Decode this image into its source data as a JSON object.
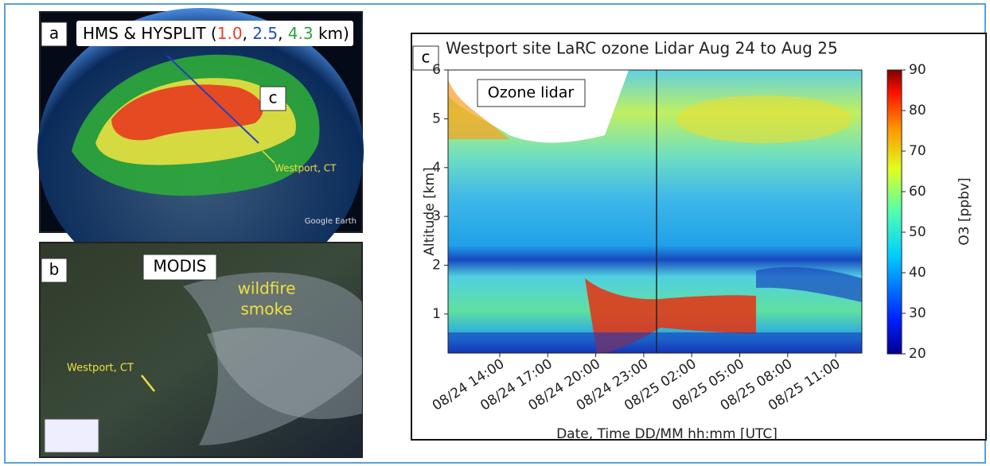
{
  "panels": {
    "a": {
      "label": "a",
      "title_parts": [
        "HMS & HYSPLIT (",
        "1.0",
        ", ",
        "2.5",
        ", ",
        "4.3",
        " km)"
      ],
      "marker": "c",
      "place": "Westport, CT",
      "credit": "Google Earth"
    },
    "b": {
      "label": "b",
      "title": "MODIS",
      "smoke": [
        "wildfire",
        "smoke"
      ],
      "place": "Westport, CT"
    }
  },
  "chart_data": {
    "type": "heatmap",
    "panel_label": "c",
    "title": "Westport site LaRC ozone Lidar Aug 24 to Aug 25",
    "annotation": "Ozone lidar",
    "xlabel": "Date, Time DD/MM hh:mm [UTC]",
    "ylabel": "Altitude [km]",
    "categories": [
      "08/24 14:00",
      "08/24 17:00",
      "08/24 20:00",
      "08/24 23:00",
      "08/25 02:00",
      "08/25 05:00",
      "08/25 08:00",
      "08/25 11:00"
    ],
    "ylim": [
      0.2,
      6
    ],
    "yticks": [
      1,
      2,
      3,
      4,
      5,
      6
    ],
    "colorbar": {
      "label": "O3 [ppbv]",
      "lim": [
        20,
        90
      ],
      "ticks": [
        20,
        30,
        40,
        50,
        60,
        70,
        80,
        90
      ],
      "colormap": "jet"
    }
  }
}
